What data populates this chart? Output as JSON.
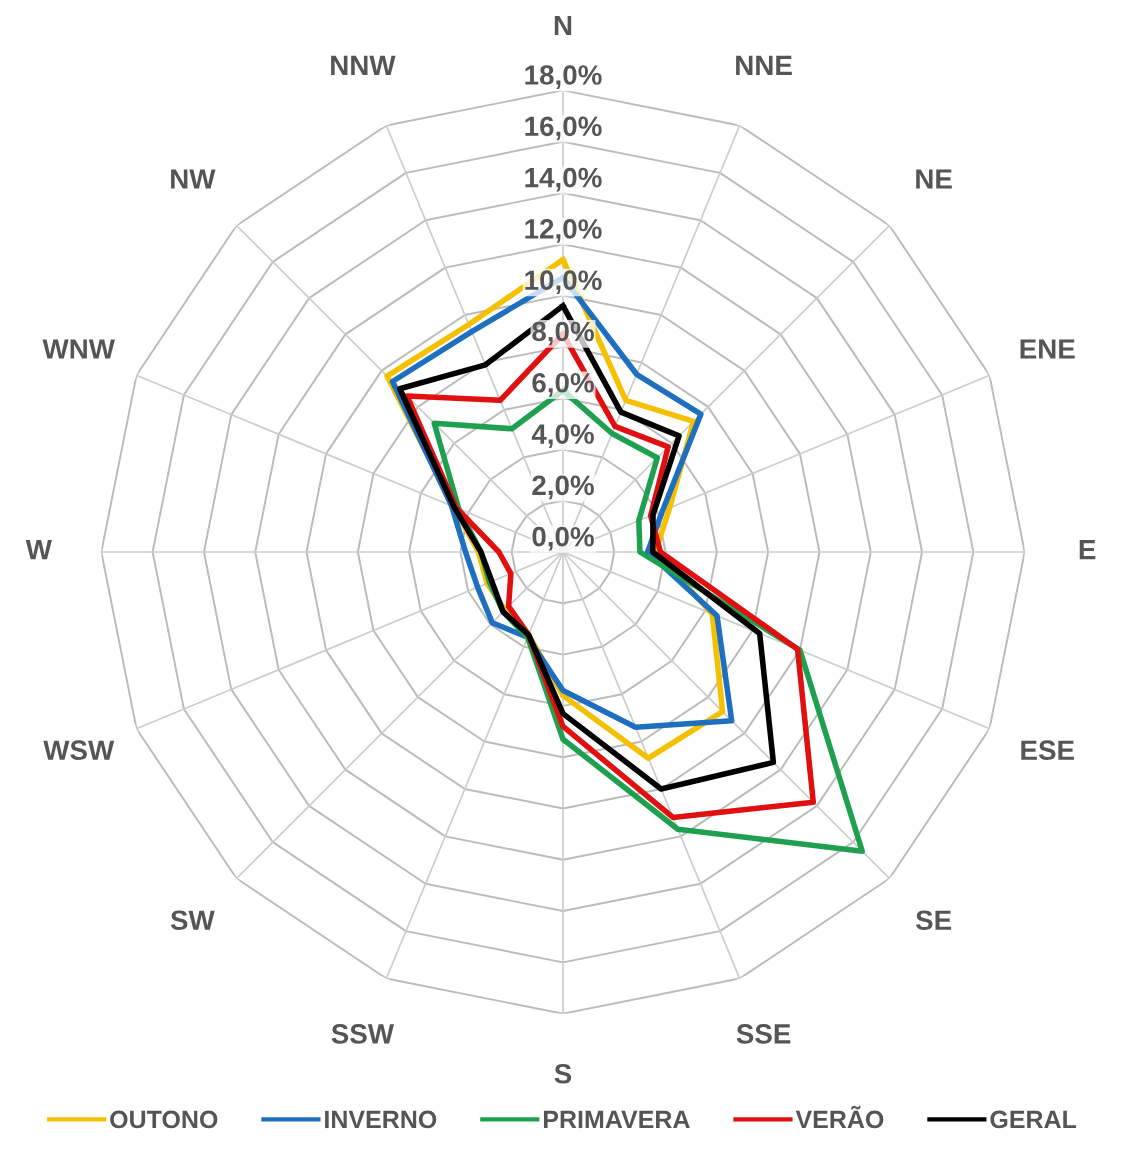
{
  "chart_data": {
    "type": "radar",
    "categories": [
      "N",
      "NNE",
      "NE",
      "ENE",
      "E",
      "ESE",
      "SE",
      "SSE",
      "S",
      "SSW",
      "SW",
      "WSW",
      "W",
      "WNW",
      "NW",
      "NNW"
    ],
    "ylim": [
      0,
      18
    ],
    "yticks": [
      {
        "value": 0,
        "label": "0,0%"
      },
      {
        "value": 2,
        "label": "2,0%"
      },
      {
        "value": 4,
        "label": "4,0%"
      },
      {
        "value": 6,
        "label": "6,0%"
      },
      {
        "value": 8,
        "label": "8,0%"
      },
      {
        "value": 10,
        "label": "10,0%"
      },
      {
        "value": 12,
        "label": "12,0%"
      },
      {
        "value": 14,
        "label": "14,0%"
      },
      {
        "value": 16,
        "label": "16,0%"
      },
      {
        "value": 18,
        "label": "18,0%"
      }
    ],
    "grid": true,
    "legend": "bottom",
    "marker": "none",
    "line_style": "solid",
    "series": [
      {
        "name": "OUTONO",
        "color": "#f5c000",
        "values": [
          11.4,
          6.4,
          7.2,
          4.5,
          3.6,
          6.3,
          8.8,
          8.7,
          5.6,
          3.5,
          3.2,
          3.2,
          3.3,
          4.6,
          9.7,
          9.6
        ]
      },
      {
        "name": "INVERNO",
        "color": "#1f6fc0",
        "values": [
          10.7,
          7.5,
          7.6,
          4.2,
          3.3,
          6.5,
          9.3,
          7.4,
          5.4,
          3.6,
          3.9,
          3.6,
          3.8,
          4.7,
          9.4,
          9.3
        ]
      },
      {
        "name": "PRIMAVERA",
        "color": "#1fa050",
        "values": [
          6.3,
          5.0,
          5.2,
          3.2,
          3.0,
          10.0,
          16.5,
          11.7,
          7.3,
          3.6,
          3.3,
          3.1,
          3.2,
          4.4,
          7.1,
          5.2
        ]
      },
      {
        "name": "VERÃO",
        "color": "#e01010",
        "values": [
          8.5,
          5.3,
          5.8,
          3.7,
          3.8,
          9.9,
          13.8,
          11.2,
          6.8,
          3.5,
          3.0,
          2.2,
          2.5,
          4.5,
          8.6,
          6.4
        ]
      },
      {
        "name": "GERAL",
        "color": "#000000",
        "values": [
          9.6,
          5.9,
          6.4,
          3.8,
          3.5,
          8.3,
          11.6,
          10.0,
          6.3,
          3.5,
          3.3,
          3.0,
          3.2,
          4.6,
          9.0,
          7.9
        ]
      }
    ]
  }
}
